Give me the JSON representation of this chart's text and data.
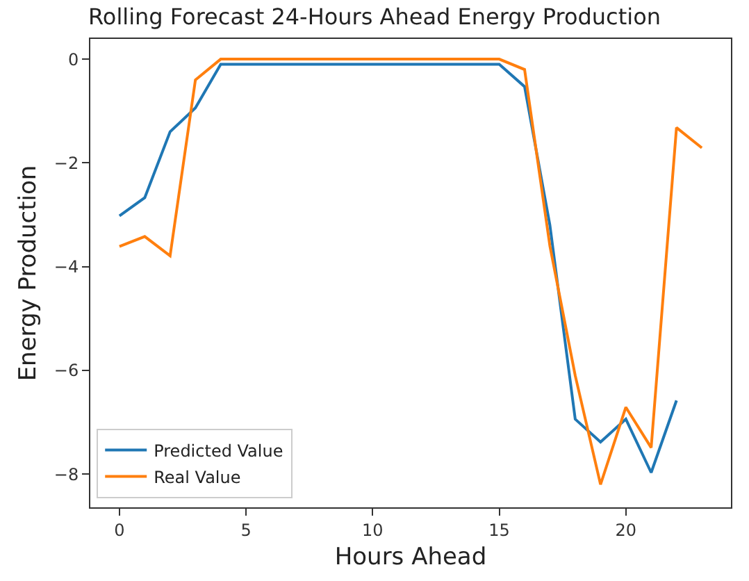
{
  "chart_data": {
    "type": "line",
    "title": "Rolling Forecast 24-Hours Ahead Energy Production",
    "xlabel": "Hours Ahead",
    "ylabel": "Energy Production",
    "xlim": [
      -1.15,
      24.15
    ],
    "ylim": [
      -8.64,
      0.39
    ],
    "xticks": [
      0,
      5,
      10,
      15,
      20
    ],
    "yticks": [
      {
        "value": 0,
        "label": "0"
      },
      {
        "value": -2,
        "label": "−2"
      },
      {
        "value": -4,
        "label": "−4"
      },
      {
        "value": -6,
        "label": "−6"
      },
      {
        "value": -8,
        "label": "−8"
      }
    ],
    "legend": "bottom left",
    "series": [
      {
        "name": "Predicted Value",
        "color": "#1f77b4",
        "x": [
          0,
          1,
          2,
          3,
          4,
          5,
          6,
          7,
          8,
          9,
          10,
          11,
          12,
          13,
          14,
          15,
          16,
          17,
          18,
          19,
          20,
          21,
          22
        ],
        "values": [
          -3.02,
          -2.67,
          -1.4,
          -0.94,
          -0.1,
          -0.1,
          -0.1,
          -0.1,
          -0.1,
          -0.1,
          -0.1,
          -0.1,
          -0.1,
          -0.1,
          -0.1,
          -0.1,
          -0.53,
          -3.2,
          -6.94,
          -7.38,
          -6.94,
          -7.97,
          -6.58
        ]
      },
      {
        "name": "Real Value",
        "color": "#ff7f0e",
        "x": [
          0,
          1,
          2,
          3,
          4,
          5,
          6,
          7,
          8,
          9,
          10,
          11,
          12,
          13,
          14,
          15,
          16,
          17,
          18,
          19,
          20,
          21,
          22,
          23
        ],
        "values": [
          -3.61,
          -3.42,
          -3.79,
          -0.4,
          0,
          0,
          0,
          0,
          0,
          0,
          0,
          0,
          0,
          0,
          0,
          0,
          -0.2,
          -3.6,
          -6.1,
          -8.2,
          -6.71,
          -7.49,
          -1.32,
          -1.71
        ]
      }
    ]
  }
}
